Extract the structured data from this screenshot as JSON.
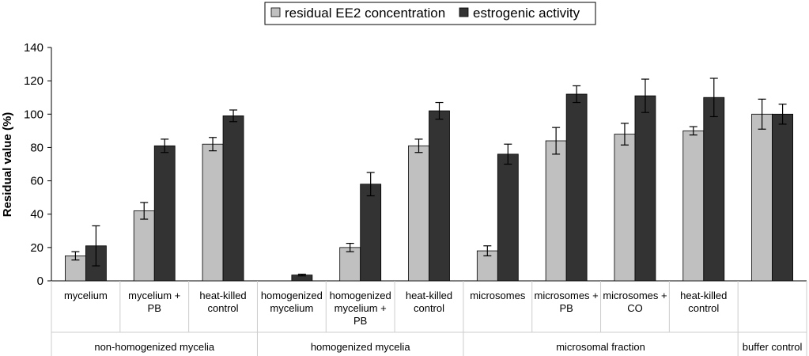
{
  "chart_data": {
    "type": "bar",
    "title": "",
    "ylabel": "Residual value (%)",
    "ylim": [
      0,
      140
    ],
    "yticks": [
      0,
      20,
      40,
      60,
      80,
      100,
      120,
      140
    ],
    "grid": false,
    "legend_position": "top",
    "colors": {
      "residual": "#c0c0c0",
      "estrogenic": "#333333",
      "axis": "#000000"
    },
    "categories": [
      "mycelium",
      "mycelium + PB",
      "heat-killed control",
      "homogenized mycelium",
      "homogenized mycelium + PB",
      "heat-killed control",
      "microsomes",
      "microsomes + PB",
      "microsomes + CO",
      "heat-killed control",
      ""
    ],
    "category_lines": [
      [
        "mycelium"
      ],
      [
        "mycelium +",
        "PB"
      ],
      [
        "heat-killed",
        "control"
      ],
      [
        "homogenized",
        "mycelium"
      ],
      [
        "homogenized",
        "mycelium +",
        "PB"
      ],
      [
        "heat-killed",
        "control"
      ],
      [
        "microsomes"
      ],
      [
        "microsomes +",
        "PB"
      ],
      [
        "microsomes +",
        "CO"
      ],
      [
        "heat-killed",
        "control"
      ],
      []
    ],
    "groups": [
      {
        "label": "non-homogenized mycelia",
        "start": 0,
        "end": 2
      },
      {
        "label": "homogenized mycelia",
        "start": 3,
        "end": 5
      },
      {
        "label": "microsomal fraction",
        "start": 6,
        "end": 9
      },
      {
        "label": "buffer control",
        "start": 10,
        "end": 10
      }
    ],
    "series": [
      {
        "name": "residual EE2 concentration",
        "values": [
          15,
          42,
          82,
          0,
          20,
          81,
          18,
          84,
          88,
          90,
          100
        ],
        "errors": [
          2.5,
          5,
          4,
          0,
          2.5,
          4,
          3,
          8,
          6.5,
          2.5,
          9
        ]
      },
      {
        "name": "estrogenic activity",
        "values": [
          21,
          81,
          99,
          3.5,
          58,
          102,
          76,
          112,
          111,
          110,
          100
        ],
        "errors": [
          12,
          4,
          3.5,
          0.5,
          7,
          5,
          6,
          5,
          10,
          11.5,
          6
        ]
      }
    ]
  }
}
